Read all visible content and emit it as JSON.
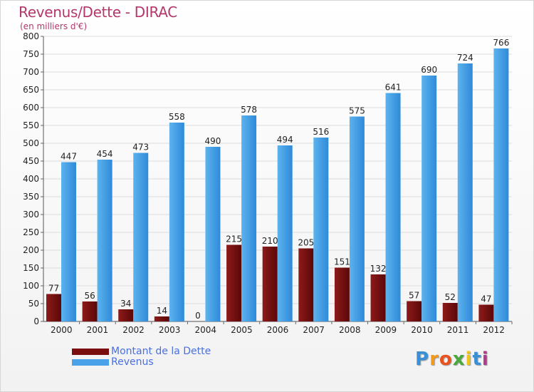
{
  "title": "Revenus/Dette - DIRAC",
  "subtitle": "(en milliers d'€)",
  "logo": {
    "text": "Proxiti",
    "letters": [
      "P",
      "r",
      "o",
      "x",
      "i",
      "t",
      "i"
    ],
    "colors": [
      "#3b8fd6",
      "#f39a1c",
      "#e8531e",
      "#4aa83c",
      "#f2c31b",
      "#3b8fd6",
      "#b23a8e"
    ]
  },
  "colors": {
    "dette": "#7a0e0e",
    "revenus": "#4aa3e8",
    "title": "#b3376b",
    "legend_text": "#4a6fe0"
  },
  "chart_data": {
    "type": "bar",
    "title": "Revenus/Dette - DIRAC",
    "ylabel": "(en milliers d'€)",
    "categories": [
      "2000",
      "2001",
      "2002",
      "2003",
      "2004",
      "2005",
      "2006",
      "2007",
      "2008",
      "2009",
      "2010",
      "2011",
      "2012"
    ],
    "series": [
      {
        "name": "Montant de la Dette",
        "values": [
          77,
          56,
          34,
          14,
          0,
          215,
          210,
          205,
          151,
          132,
          57,
          52,
          47
        ]
      },
      {
        "name": "Revenus",
        "values": [
          447,
          454,
          473,
          558,
          490,
          578,
          494,
          516,
          575,
          641,
          690,
          724,
          766
        ]
      }
    ],
    "ylim": [
      0,
      800
    ],
    "yticks": [
      0,
      50,
      100,
      150,
      200,
      250,
      300,
      350,
      400,
      450,
      500,
      550,
      600,
      650,
      700,
      750,
      800
    ],
    "grid": true,
    "legend": "bottom-left"
  }
}
